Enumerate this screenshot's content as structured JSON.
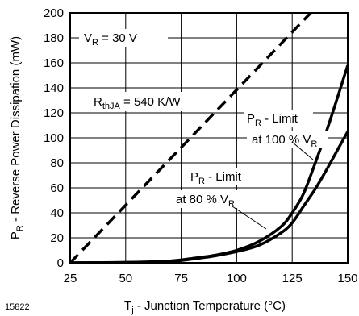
{
  "figure_id": "15822",
  "chart_data": {
    "type": "line",
    "title": "",
    "xlabel": "T_j - Junction Temperature (°C)",
    "ylabel": "P_R - Reverse Power Dissipation (mW)",
    "xlim": [
      25,
      150
    ],
    "ylim": [
      0,
      200
    ],
    "x_ticks": [
      25,
      50,
      75,
      100,
      125,
      150
    ],
    "y_ticks": [
      0,
      20,
      40,
      60,
      80,
      100,
      120,
      140,
      160,
      180,
      200
    ],
    "grid": true,
    "series": [
      {
        "name": "R_thJA = 540 K/W",
        "style": "dashed",
        "x": [
          25,
          136
        ],
        "y": [
          0,
          205
        ]
      },
      {
        "name": "P_R - Limit at 100 % V_R",
        "style": "solid",
        "x": [
          25,
          50,
          70,
          80,
          90,
          100,
          110,
          120,
          125,
          130,
          135,
          140,
          145,
          150
        ],
        "y": [
          0,
          0.3,
          1.5,
          3.5,
          6,
          10,
          17,
          29,
          40,
          55,
          78,
          103,
          130,
          158
        ]
      },
      {
        "name": "P_R - Limit at 80 % V_R",
        "style": "solid",
        "x": [
          25,
          50,
          70,
          80,
          90,
          100,
          110,
          120,
          125,
          130,
          135,
          140,
          145,
          150
        ],
        "y": [
          0,
          0.3,
          1.2,
          3,
          5.5,
          9,
          14,
          24,
          32,
          45,
          58,
          73,
          89,
          105
        ]
      }
    ],
    "annotations": [
      {
        "id": "vr",
        "text_main": "V",
        "text_sub": "R",
        "text_rest": " = 30 V"
      },
      {
        "id": "rth",
        "text_main": "R",
        "text_sub": "thJA",
        "text_rest": " = 540 K/W"
      },
      {
        "id": "lim100",
        "line1_main": "P",
        "line1_sub": "R",
        "line1_rest": " - Limit",
        "line2_main": "at 100 % V",
        "line2_sub": "R"
      },
      {
        "id": "lim80",
        "line1_main": "P",
        "line1_sub": "R",
        "line1_rest": " - Limit",
        "line2_main": "at 80 % V",
        "line2_sub": "R"
      }
    ],
    "axis_text": {
      "y_main": "P",
      "y_sub": "R",
      "y_rest": " - Reverse Power Dissipation (mW)",
      "x_main": "T",
      "x_sub": "j",
      "x_rest": " - Junction Temperature (°C)"
    }
  }
}
